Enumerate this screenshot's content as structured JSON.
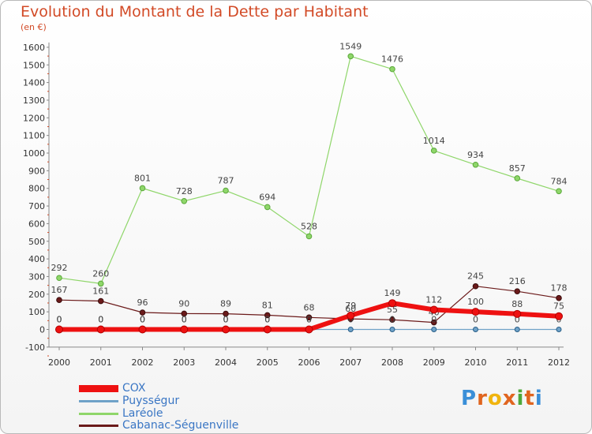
{
  "header": {
    "title": "Evolution du Montant de la Dette par Habitant",
    "subtitle": "(en €)"
  },
  "logo": {
    "text": "Proxiti",
    "letters": [
      "P",
      "r",
      "o",
      "x",
      "i",
      "t",
      "i"
    ],
    "colors": [
      "#3a8fd8",
      "#e0651f",
      "#f0b40e",
      "#e0651f",
      "#4da83a",
      "#e0651f",
      "#3a8fd8"
    ]
  },
  "chart_data": {
    "type": "line",
    "x": [
      "2000",
      "2001",
      "2002",
      "2003",
      "2004",
      "2005",
      "2006",
      "2007",
      "2008",
      "2009",
      "2010",
      "2011",
      "2012"
    ],
    "ylim": [
      -100,
      1600
    ],
    "yticks": [
      "-100",
      "0",
      "100",
      "200",
      "300",
      "400",
      "500",
      "600",
      "700",
      "800",
      "900",
      "1000",
      "1100",
      "1200",
      "1300",
      "1400",
      "1500",
      "1600"
    ],
    "grid": false,
    "legend_position": "bottom-left",
    "series": [
      {
        "name": "Laréole",
        "color": "#8fd66a",
        "values": [
          292,
          260,
          801,
          728,
          787,
          694,
          528,
          1549,
          1476,
          1014,
          934,
          857,
          784
        ],
        "labels": [
          "292",
          "260",
          "801",
          "728",
          "787",
          "694",
          "528",
          "1549",
          "1476",
          "1014",
          "934",
          "857",
          "784"
        ]
      },
      {
        "name": "Cabanac-Séguenville",
        "color": "#6b1a1a",
        "values": [
          167,
          161,
          96,
          90,
          89,
          81,
          68,
          60,
          55,
          40,
          245,
          216,
          178
        ],
        "labels": [
          "167",
          "161",
          "96",
          "90",
          "89",
          "81",
          "68",
          "60",
          "55",
          "40",
          "245",
          "216",
          "178"
        ]
      },
      {
        "name": "Puysségur",
        "color": "#6fa2c8",
        "values": [
          0,
          0,
          0,
          0,
          0,
          0,
          0,
          0,
          0,
          0,
          0,
          0,
          0
        ],
        "labels": [
          "0",
          "0",
          "0",
          "0",
          "0",
          "0",
          "0",
          "0",
          "0",
          "0",
          "0",
          "0",
          "0"
        ]
      },
      {
        "name": "COX",
        "color": "#ee1111",
        "values": [
          0,
          0,
          0,
          0,
          0,
          0,
          0,
          79,
          149,
          112,
          100,
          88,
          75
        ],
        "labels": [
          "0",
          "0",
          "0",
          "0",
          "0",
          "0",
          "0",
          "79",
          "149",
          "112",
          "100",
          "88",
          "75"
        ]
      }
    ]
  },
  "legend": [
    {
      "name": "COX",
      "color": "#ee1111",
      "thick": true
    },
    {
      "name": "Puysségur",
      "color": "#6fa2c8",
      "thick": false
    },
    {
      "name": "Laréole",
      "color": "#8fd66a",
      "thick": false
    },
    {
      "name": "Cabanac-Séguenville",
      "color": "#6b1a1a",
      "thick": false
    }
  ]
}
